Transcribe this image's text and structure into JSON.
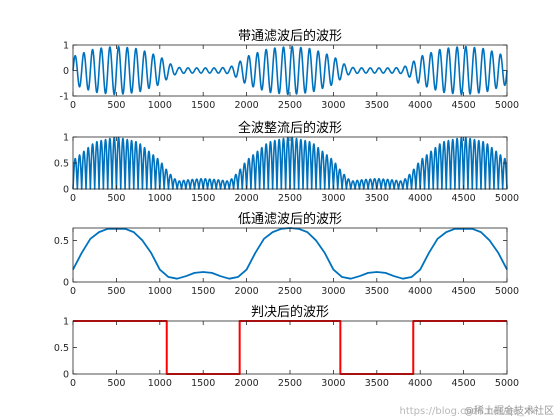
{
  "chart_data": [
    {
      "type": "line",
      "title": "带通滤波后的波形",
      "xlim": [
        0,
        5000
      ],
      "ylim": [
        -1,
        1
      ],
      "xticks": [
        0,
        500,
        1000,
        1500,
        2000,
        2500,
        3000,
        3500,
        4000,
        4500,
        5000
      ],
      "yticks": [
        -1,
        0,
        1
      ],
      "color": "#0072BD",
      "signal": {
        "form": "modulated-carrier",
        "carrier_period": 100,
        "envelope_x": [
          0,
          250,
          500,
          750,
          1000,
          1100,
          1200,
          1350,
          1500,
          1650,
          1800,
          1900,
          2000,
          2250,
          2500,
          2750,
          3000,
          3100,
          3200,
          3350,
          3500,
          3650,
          3800,
          3900,
          4000,
          4250,
          4500,
          4750,
          5000
        ],
        "envelope_y": [
          0.55,
          0.85,
          0.95,
          0.85,
          0.55,
          0.3,
          0.12,
          0.1,
          0.1,
          0.1,
          0.12,
          0.3,
          0.55,
          0.85,
          0.95,
          0.85,
          0.55,
          0.3,
          0.12,
          0.1,
          0.1,
          0.1,
          0.12,
          0.3,
          0.55,
          0.85,
          0.95,
          0.85,
          0.55
        ]
      }
    },
    {
      "type": "line",
      "title": "全波整流后的波形",
      "xlim": [
        0,
        5000
      ],
      "ylim": [
        0,
        1
      ],
      "xticks": [
        0,
        500,
        1000,
        1500,
        2000,
        2500,
        3000,
        3500,
        4000,
        4500,
        5000
      ],
      "yticks": [
        0,
        0.5,
        1
      ],
      "color": "#0072BD",
      "signal": {
        "form": "rectified-carrier",
        "carrier_period": 100,
        "envelope_x": [
          0,
          250,
          500,
          750,
          1000,
          1100,
          1200,
          1350,
          1500,
          1650,
          1800,
          1900,
          2000,
          2250,
          2500,
          2750,
          3000,
          3100,
          3200,
          3350,
          3500,
          3650,
          3800,
          3900,
          4000,
          4250,
          4500,
          4750,
          5000
        ],
        "envelope_y": [
          0.55,
          0.9,
          1.0,
          0.9,
          0.55,
          0.32,
          0.15,
          0.18,
          0.2,
          0.18,
          0.15,
          0.32,
          0.55,
          0.9,
          1.0,
          0.9,
          0.55,
          0.32,
          0.15,
          0.18,
          0.2,
          0.18,
          0.15,
          0.32,
          0.55,
          0.9,
          1.0,
          0.9,
          0.55
        ]
      }
    },
    {
      "type": "line",
      "title": "低通滤波后的波形",
      "xlim": [
        0,
        5000
      ],
      "ylim": [
        0,
        0.65
      ],
      "xticks": [
        0,
        500,
        1000,
        1500,
        2000,
        2500,
        3000,
        3500,
        4000,
        4500,
        5000
      ],
      "yticks": [
        0,
        0.5
      ],
      "color": "#0072BD",
      "x": [
        0,
        100,
        200,
        300,
        400,
        500,
        600,
        700,
        800,
        900,
        1000,
        1100,
        1200,
        1300,
        1400,
        1500,
        1600,
        1700,
        1800,
        1900,
        2000,
        2100,
        2200,
        2300,
        2400,
        2500,
        2600,
        2700,
        2800,
        2900,
        3000,
        3100,
        3200,
        3300,
        3400,
        3500,
        3600,
        3700,
        3800,
        3900,
        4000,
        4100,
        4200,
        4300,
        4400,
        4500,
        4600,
        4700,
        4800,
        4900,
        5000
      ],
      "y": [
        0.15,
        0.35,
        0.52,
        0.6,
        0.64,
        0.64,
        0.64,
        0.6,
        0.5,
        0.35,
        0.15,
        0.06,
        0.04,
        0.07,
        0.11,
        0.12,
        0.11,
        0.07,
        0.04,
        0.06,
        0.15,
        0.35,
        0.52,
        0.6,
        0.64,
        0.65,
        0.64,
        0.6,
        0.5,
        0.35,
        0.15,
        0.06,
        0.04,
        0.07,
        0.11,
        0.12,
        0.11,
        0.07,
        0.04,
        0.06,
        0.15,
        0.35,
        0.52,
        0.6,
        0.64,
        0.64,
        0.64,
        0.6,
        0.5,
        0.35,
        0.15
      ]
    },
    {
      "type": "line",
      "title": "判决后的波形",
      "xlim": [
        0,
        5000
      ],
      "ylim": [
        0,
        1
      ],
      "xticks": [
        0,
        500,
        1000,
        1500,
        2000,
        2500,
        3000,
        3500,
        4000,
        4500,
        5000
      ],
      "yticks": [
        0,
        0.5,
        1
      ],
      "color": "#FF0000",
      "x": [
        0,
        1080,
        1080,
        1920,
        1920,
        3080,
        3080,
        3920,
        3920,
        5000
      ],
      "y": [
        1,
        1,
        0,
        0,
        1,
        1,
        0,
        0,
        1,
        1
      ]
    }
  ],
  "watermark": "https://blog.csdn.net/qq_xx",
  "attribution": "@稀土掘金技术社区"
}
